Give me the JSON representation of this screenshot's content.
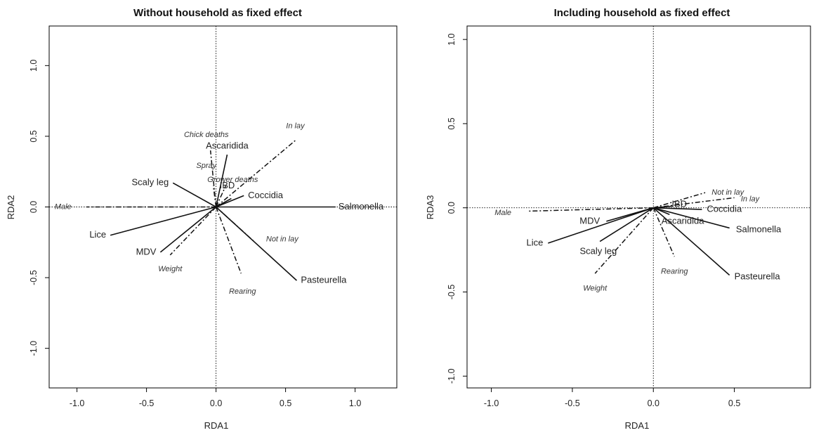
{
  "chart_data": [
    {
      "type": "scatter",
      "title": "Without household as fixed effect",
      "xlabel": "RDA1",
      "ylabel": "RDA2",
      "xlim": [
        -1.2,
        1.3
      ],
      "ylim": [
        -1.28,
        1.28
      ],
      "xticks": [
        -1.0,
        -0.5,
        0.0,
        0.5,
        1.0
      ],
      "xtick_labels": [
        "-1.0",
        "-0.5",
        "0.0",
        "0.5",
        "1.0"
      ],
      "yticks": [
        -1.0,
        -0.5,
        0.0,
        0.5,
        1.0
      ],
      "ytick_labels": [
        "-1.0",
        "-0.5",
        "0.0",
        "0.5",
        "1.0"
      ],
      "zero_lines": true,
      "response_vectors": [
        {
          "name": "Salmonella",
          "x": 0.86,
          "y": 0.0,
          "lx": 0.88,
          "ly": 0.0,
          "anchor": "start"
        },
        {
          "name": "Pasteurella",
          "x": 0.58,
          "y": -0.52,
          "lx": 0.61,
          "ly": -0.52,
          "anchor": "start"
        },
        {
          "name": "Coccidia",
          "x": 0.2,
          "y": 0.08,
          "lx": 0.23,
          "ly": 0.08,
          "anchor": "start"
        },
        {
          "name": "IBD",
          "x": 0.11,
          "y": 0.06,
          "lx": 0.08,
          "ly": 0.15,
          "anchor": "middle"
        },
        {
          "name": "Ascaridida",
          "x": 0.08,
          "y": 0.37,
          "lx": 0.08,
          "ly": 0.43,
          "anchor": "middle"
        },
        {
          "name": "Scaly leg",
          "x": -0.31,
          "y": 0.17,
          "lx": -0.34,
          "ly": 0.17,
          "anchor": "end"
        },
        {
          "name": "Lice",
          "x": -0.76,
          "y": -0.2,
          "lx": -0.79,
          "ly": -0.2,
          "anchor": "end"
        },
        {
          "name": "MDV",
          "x": -0.4,
          "y": -0.32,
          "lx": -0.43,
          "ly": -0.32,
          "anchor": "end"
        }
      ],
      "explanatory_vectors": [
        {
          "name": "In lay",
          "x": 0.57,
          "y": 0.47,
          "lx": 0.57,
          "ly": 0.57,
          "anchor": "middle"
        },
        {
          "name": "Chick deaths",
          "x": -0.04,
          "y": 0.4,
          "lx": -0.07,
          "ly": 0.51,
          "anchor": "middle"
        },
        {
          "name": "Spray",
          "x": -0.02,
          "y": 0.15,
          "lx": -0.07,
          "ly": 0.29,
          "anchor": "middle"
        },
        {
          "name": "Grower deaths",
          "x": 0.07,
          "y": 0.15,
          "lx": 0.12,
          "ly": 0.19,
          "anchor": "middle"
        },
        {
          "name": "Male",
          "x": -0.93,
          "y": 0.0,
          "lx": -1.16,
          "ly": 0.0,
          "anchor": "start"
        },
        {
          "name": "Not in lay",
          "x": 0.28,
          "y": -0.25,
          "lx": 0.36,
          "ly": -0.23,
          "anchor": "start"
        },
        {
          "name": "Weight",
          "x": -0.33,
          "y": -0.34,
          "lx": -0.33,
          "ly": -0.44,
          "anchor": "middle"
        },
        {
          "name": "Rearing",
          "x": 0.18,
          "y": -0.47,
          "lx": 0.19,
          "ly": -0.6,
          "anchor": "middle"
        }
      ]
    },
    {
      "type": "scatter",
      "title": "Including household as fixed effect",
      "xlabel": "RDA1",
      "ylabel": "RDA3",
      "xlim": [
        -1.15,
        0.97
      ],
      "ylim": [
        -1.07,
        1.08
      ],
      "xticks": [
        -1.0,
        -0.5,
        0.0,
        0.5
      ],
      "xtick_labels": [
        "-1.0",
        "-0.5",
        "0.0",
        "0.5"
      ],
      "yticks": [
        -1.0,
        -0.5,
        0.0,
        0.5,
        1.0
      ],
      "ytick_labels": [
        "-1.0",
        "-0.5",
        "0.0",
        "0.5",
        "1.0"
      ],
      "zero_lines": true,
      "response_vectors": [
        {
          "name": "IBD",
          "x": 0.12,
          "y": 0.01,
          "lx": 0.16,
          "ly": 0.02,
          "anchor": "middle"
        },
        {
          "name": "Coccidia",
          "x": 0.3,
          "y": -0.01,
          "lx": 0.33,
          "ly": -0.01,
          "anchor": "start"
        },
        {
          "name": "Ascaridida",
          "x": 0.1,
          "y": -0.04,
          "lx": 0.05,
          "ly": -0.08,
          "anchor": "start"
        },
        {
          "name": "Salmonella",
          "x": 0.47,
          "y": -0.12,
          "lx": 0.51,
          "ly": -0.13,
          "anchor": "start"
        },
        {
          "name": "Pasteurella",
          "x": 0.47,
          "y": -0.4,
          "lx": 0.5,
          "ly": -0.41,
          "anchor": "start"
        },
        {
          "name": "MDV",
          "x": -0.29,
          "y": -0.08,
          "lx": -0.33,
          "ly": -0.08,
          "anchor": "end"
        },
        {
          "name": "Lice",
          "x": -0.65,
          "y": -0.21,
          "lx": -0.68,
          "ly": -0.21,
          "anchor": "end"
        },
        {
          "name": "Scaly leg",
          "x": -0.33,
          "y": -0.2,
          "lx": -0.34,
          "ly": -0.26,
          "anchor": "middle"
        }
      ],
      "explanatory_vectors": [
        {
          "name": "Not in lay",
          "x": 0.32,
          "y": 0.09,
          "lx": 0.36,
          "ly": 0.09,
          "anchor": "start"
        },
        {
          "name": "In lay",
          "x": 0.5,
          "y": 0.06,
          "lx": 0.54,
          "ly": 0.05,
          "anchor": "start"
        },
        {
          "name": "Male",
          "x": -0.78,
          "y": -0.02,
          "lx": -0.98,
          "ly": -0.03,
          "anchor": "start"
        },
        {
          "name": "Weight",
          "x": -0.36,
          "y": -0.39,
          "lx": -0.36,
          "ly": -0.48,
          "anchor": "middle"
        },
        {
          "name": "Rearing",
          "x": 0.13,
          "y": -0.29,
          "lx": 0.13,
          "ly": -0.38,
          "anchor": "middle"
        }
      ]
    }
  ]
}
